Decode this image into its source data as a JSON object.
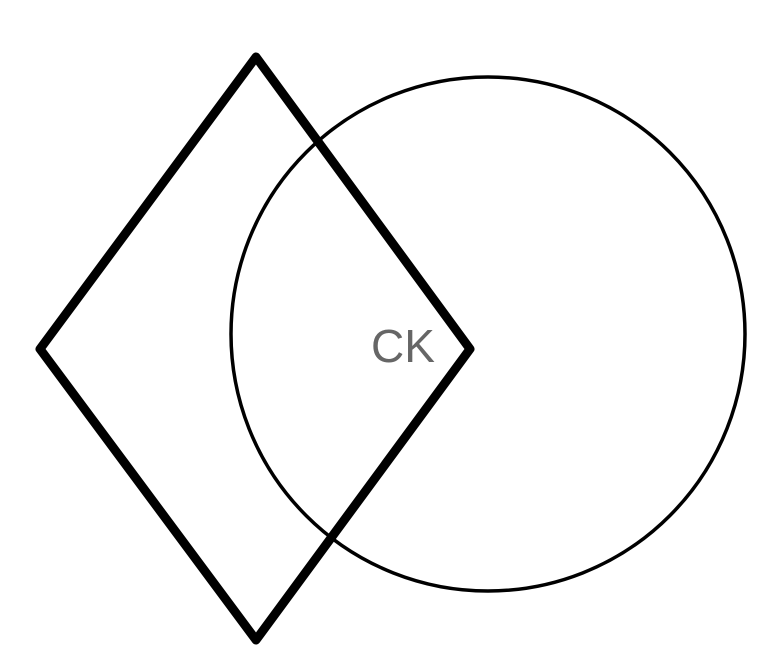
{
  "diagram": {
    "shapes": [
      {
        "kind": "diamond",
        "name": "diamond-shape",
        "stroke": "#000000"
      },
      {
        "kind": "circle",
        "name": "circle-shape",
        "stroke": "#000000"
      }
    ],
    "label": {
      "text": "CK",
      "color": "#666666"
    }
  }
}
